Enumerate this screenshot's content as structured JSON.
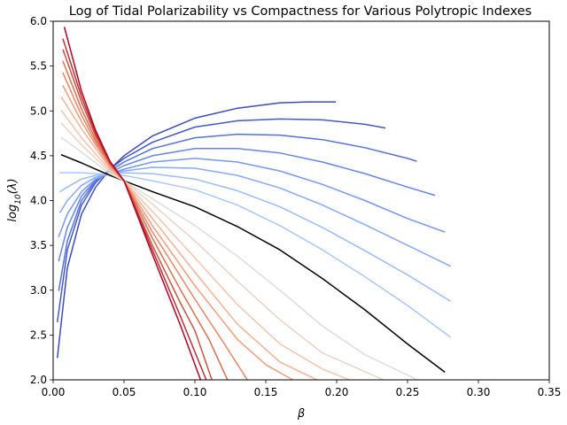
{
  "chart_data": {
    "type": "line",
    "title": "Log of Tidal Polarizability vs Compactness for Various Polytropic Indexes",
    "xlabel": "β",
    "ylabel_base": "log",
    "ylabel_sub": "10",
    "ylabel_arg": "(λ)",
    "xlim": [
      0.0,
      0.35
    ],
    "ylim": [
      2.0,
      6.0
    ],
    "x_ticks": [
      0.0,
      0.05,
      0.1,
      0.15,
      0.2,
      0.25,
      0.3,
      0.35
    ],
    "x_tick_labels": [
      "0.00",
      "0.05",
      "0.10",
      "0.15",
      "0.20",
      "0.25",
      "0.30",
      "0.35"
    ],
    "y_ticks": [
      2.0,
      2.5,
      3.0,
      3.5,
      4.0,
      4.5,
      5.0,
      5.5,
      6.0
    ],
    "y_tick_labels": [
      "2.0",
      "2.5",
      "3.0",
      "3.5",
      "4.0",
      "4.5",
      "5.0",
      "5.5",
      "6.0"
    ],
    "grid": false,
    "colormap": "coolwarm",
    "series": [
      {
        "color": "#3b4cc0",
        "x": [
          0.003,
          0.01,
          0.02,
          0.03,
          0.04,
          0.05,
          0.07,
          0.1,
          0.13,
          0.16,
          0.18,
          0.199
        ],
        "y": [
          2.25,
          3.25,
          3.85,
          4.15,
          4.35,
          4.5,
          4.72,
          4.92,
          5.03,
          5.09,
          5.1,
          5.1
        ]
      },
      {
        "color": "#4358cb",
        "x": [
          0.003,
          0.01,
          0.02,
          0.03,
          0.04,
          0.05,
          0.07,
          0.1,
          0.13,
          0.16,
          0.19,
          0.22,
          0.234
        ],
        "y": [
          2.65,
          3.45,
          3.95,
          4.2,
          4.35,
          4.47,
          4.65,
          4.82,
          4.89,
          4.91,
          4.9,
          4.85,
          4.81
        ]
      },
      {
        "color": "#5470de",
        "x": [
          0.004,
          0.01,
          0.02,
          0.03,
          0.04,
          0.05,
          0.07,
          0.1,
          0.13,
          0.16,
          0.19,
          0.22,
          0.25,
          0.256
        ],
        "y": [
          3.0,
          3.55,
          4.0,
          4.22,
          4.33,
          4.43,
          4.58,
          4.7,
          4.74,
          4.73,
          4.68,
          4.59,
          4.47,
          4.44
        ]
      },
      {
        "color": "#6485ec",
        "x": [
          0.004,
          0.01,
          0.02,
          0.03,
          0.04,
          0.05,
          0.07,
          0.1,
          0.13,
          0.16,
          0.19,
          0.22,
          0.25,
          0.269
        ],
        "y": [
          3.33,
          3.7,
          4.05,
          4.23,
          4.31,
          4.39,
          4.5,
          4.58,
          4.58,
          4.53,
          4.43,
          4.3,
          4.15,
          4.06
        ]
      },
      {
        "color": "#7597f6",
        "x": [
          0.004,
          0.01,
          0.02,
          0.03,
          0.04,
          0.05,
          0.07,
          0.1,
          0.13,
          0.16,
          0.19,
          0.22,
          0.25,
          0.276
        ],
        "y": [
          3.6,
          3.85,
          4.1,
          4.24,
          4.3,
          4.35,
          4.43,
          4.47,
          4.43,
          4.33,
          4.18,
          4.0,
          3.8,
          3.65
        ]
      },
      {
        "color": "#86a9fc",
        "x": [
          0.005,
          0.01,
          0.02,
          0.03,
          0.04,
          0.05,
          0.07,
          0.1,
          0.13,
          0.16,
          0.19,
          0.22,
          0.25,
          0.28
        ],
        "y": [
          3.87,
          4.0,
          4.17,
          4.26,
          4.3,
          4.33,
          4.37,
          4.36,
          4.28,
          4.14,
          3.95,
          3.73,
          3.5,
          3.27
        ]
      },
      {
        "color": "#9abbff",
        "x": [
          0.005,
          0.01,
          0.02,
          0.03,
          0.04,
          0.05,
          0.07,
          0.1,
          0.13,
          0.16,
          0.19,
          0.22,
          0.25,
          0.28
        ],
        "y": [
          4.1,
          4.15,
          4.24,
          4.28,
          4.3,
          4.31,
          4.3,
          4.24,
          4.11,
          3.93,
          3.7,
          3.44,
          3.17,
          2.88
        ]
      },
      {
        "color": "#aac7fd",
        "x": [
          0.005,
          0.02,
          0.03,
          0.04,
          0.05,
          0.07,
          0.1,
          0.13,
          0.16,
          0.19,
          0.22,
          0.25,
          0.28
        ],
        "y": [
          4.31,
          4.31,
          4.3,
          4.29,
          4.28,
          4.22,
          4.12,
          3.95,
          3.72,
          3.45,
          3.15,
          2.83,
          2.48
        ]
      },
      {
        "color": "#000000",
        "x": [
          0.006,
          0.02,
          0.03,
          0.04,
          0.05,
          0.07,
          0.1,
          0.13,
          0.16,
          0.19,
          0.22,
          0.25,
          0.276
        ],
        "y": [
          4.51,
          4.42,
          4.35,
          4.28,
          4.22,
          4.1,
          3.93,
          3.71,
          3.45,
          3.13,
          2.78,
          2.4,
          2.09
        ]
      },
      {
        "color": "#dddcdc",
        "x": [
          0.006,
          0.02,
          0.03,
          0.04,
          0.05,
          0.07,
          0.1,
          0.13,
          0.16,
          0.19,
          0.22,
          0.257
        ],
        "y": [
          4.7,
          4.54,
          4.42,
          4.3,
          4.22,
          4.02,
          3.72,
          3.38,
          3.0,
          2.6,
          2.28,
          2.0
        ]
      },
      {
        "color": "#ecd3c5",
        "x": [
          0.006,
          0.02,
          0.03,
          0.04,
          0.05,
          0.07,
          0.1,
          0.13,
          0.16,
          0.19,
          0.233
        ],
        "y": [
          4.86,
          4.62,
          4.47,
          4.32,
          4.22,
          3.96,
          3.55,
          3.1,
          2.67,
          2.3,
          2.0
        ]
      },
      {
        "color": "#f5c4ac",
        "x": [
          0.006,
          0.02,
          0.03,
          0.04,
          0.05,
          0.07,
          0.1,
          0.13,
          0.16,
          0.19,
          0.209
        ],
        "y": [
          5.0,
          4.7,
          4.52,
          4.34,
          4.22,
          3.88,
          3.36,
          2.84,
          2.4,
          2.12,
          2.0
        ]
      },
      {
        "color": "#f7b194",
        "x": [
          0.006,
          0.02,
          0.03,
          0.04,
          0.05,
          0.07,
          0.1,
          0.13,
          0.16,
          0.186
        ],
        "y": [
          5.15,
          4.8,
          4.58,
          4.36,
          4.22,
          3.8,
          3.2,
          2.62,
          2.2,
          2.0
        ]
      },
      {
        "color": "#f39c7b",
        "x": [
          0.007,
          0.02,
          0.03,
          0.04,
          0.05,
          0.07,
          0.1,
          0.13,
          0.15,
          0.169
        ],
        "y": [
          5.28,
          4.88,
          4.62,
          4.38,
          4.22,
          3.72,
          3.05,
          2.45,
          2.17,
          2.0
        ]
      },
      {
        "color": "#ea8565",
        "x": [
          0.007,
          0.02,
          0.03,
          0.04,
          0.05,
          0.07,
          0.1,
          0.12,
          0.137
        ],
        "y": [
          5.42,
          4.95,
          4.65,
          4.4,
          4.22,
          3.65,
          2.9,
          2.42,
          2.0
        ]
      },
      {
        "color": "#de6e50",
        "x": [
          0.007,
          0.02,
          0.03,
          0.04,
          0.05,
          0.07,
          0.09,
          0.11,
          0.123
        ],
        "y": [
          5.55,
          5.02,
          4.68,
          4.41,
          4.22,
          3.58,
          3.0,
          2.45,
          2.0
        ]
      },
      {
        "color": "#cd523f",
        "x": [
          0.007,
          0.02,
          0.03,
          0.04,
          0.05,
          0.07,
          0.09,
          0.1,
          0.112
        ],
        "y": [
          5.68,
          5.1,
          4.72,
          4.42,
          4.22,
          3.5,
          2.85,
          2.55,
          2.0
        ]
      },
      {
        "color": "#bc2f33",
        "x": [
          0.007,
          0.02,
          0.03,
          0.04,
          0.05,
          0.07,
          0.09,
          0.108
        ],
        "y": [
          5.8,
          5.16,
          4.75,
          4.43,
          4.22,
          3.45,
          2.7,
          2.0
        ]
      },
      {
        "color": "#b40426",
        "x": [
          0.008,
          0.02,
          0.03,
          0.04,
          0.05,
          0.07,
          0.09,
          0.104
        ],
        "y": [
          5.93,
          5.22,
          4.78,
          4.44,
          4.22,
          3.4,
          2.6,
          2.0
        ]
      }
    ]
  }
}
